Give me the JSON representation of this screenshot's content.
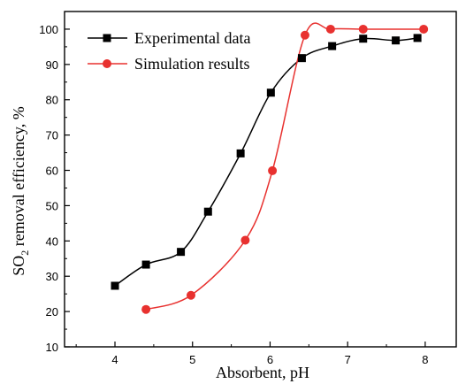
{
  "chart_data": {
    "type": "line",
    "title": "",
    "xlabel": "Absorbent, pH",
    "ylabel_main": "SO",
    "ylabel_sub": "2",
    "ylabel_rest": " removal efficiency, %",
    "xlim": [
      3.35,
      8.4
    ],
    "ylim": [
      10,
      105
    ],
    "xticks": [
      4,
      5,
      6,
      7,
      8
    ],
    "yticks": [
      10,
      20,
      30,
      40,
      50,
      60,
      70,
      80,
      90,
      100
    ],
    "legend_position": "top-left",
    "series": [
      {
        "name": "Experimental data",
        "marker": "square",
        "color": "#000000",
        "x": [
          4.0,
          4.4,
          4.85,
          5.2,
          5.62,
          6.01,
          6.41,
          6.8,
          7.2,
          7.62,
          7.9
        ],
        "y": [
          27.3,
          33.3,
          36.9,
          48.3,
          64.8,
          82.0,
          91.8,
          95.2,
          97.3,
          96.8,
          97.5
        ]
      },
      {
        "name": "Simulation results",
        "marker": "circle",
        "color": "#e8312f",
        "x": [
          4.4,
          4.98,
          5.68,
          6.03,
          6.45,
          6.78,
          7.2,
          7.98
        ],
        "y": [
          20.6,
          24.6,
          40.2,
          59.9,
          98.3,
          100.0,
          100.0,
          100.0
        ]
      }
    ]
  }
}
